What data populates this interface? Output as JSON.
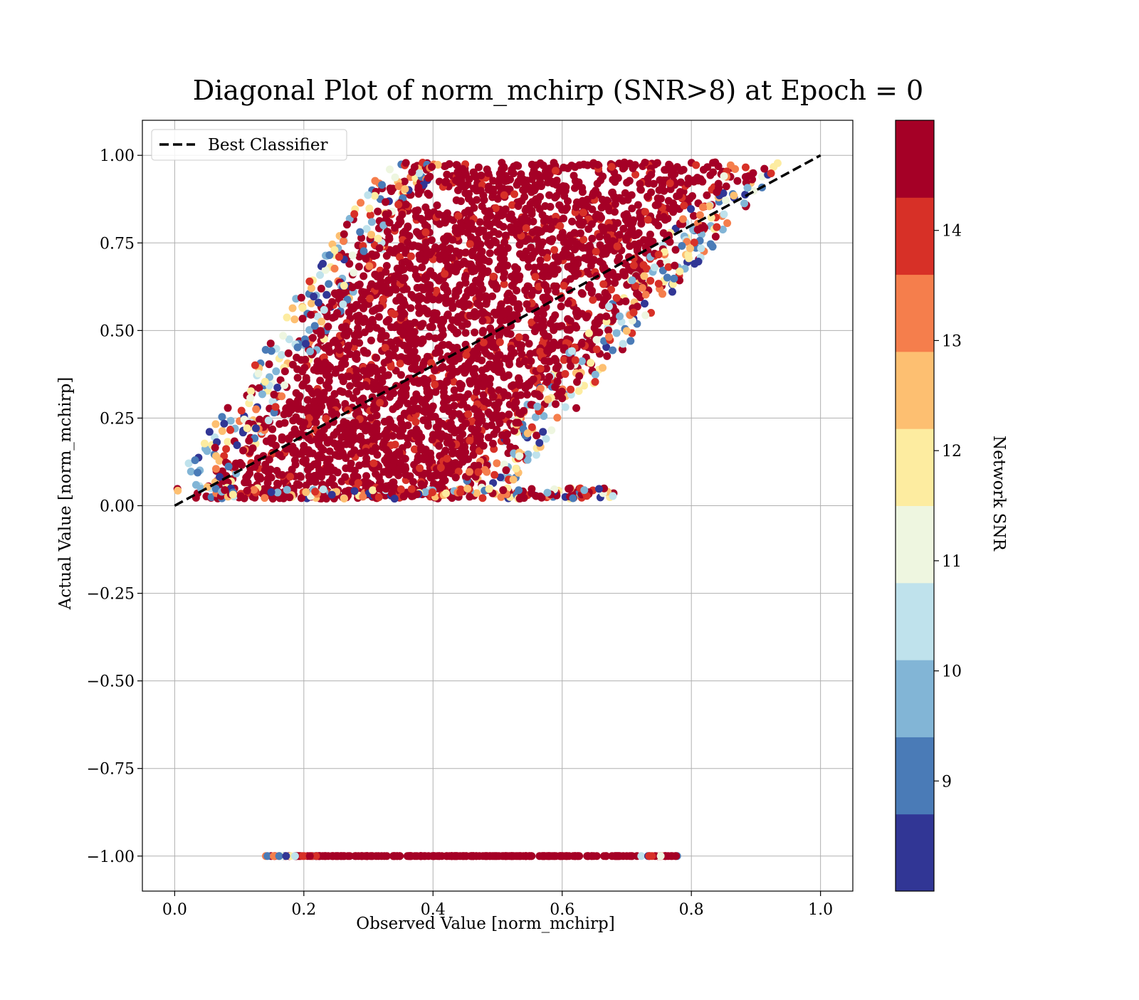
{
  "chart_data": {
    "type": "scatter",
    "title": "Diagonal Plot of norm_mchirp (SNR>8) at Epoch = 0",
    "xlabel": "Observed Value [norm_mchirp]",
    "ylabel": "Actual Value [norm_mchirp]",
    "xlim": [
      -0.05,
      1.05
    ],
    "ylim": [
      -1.1,
      1.1
    ],
    "x_ticks": [
      0.0,
      0.2,
      0.4,
      0.6,
      0.8,
      1.0
    ],
    "x_tick_labels": [
      "0.0",
      "0.2",
      "0.4",
      "0.6",
      "0.8",
      "1.0"
    ],
    "y_ticks": [
      1.0,
      0.75,
      0.5,
      0.25,
      0.0,
      -0.25,
      -0.5,
      -0.75,
      -1.0
    ],
    "y_tick_labels": [
      "1.00",
      "0.75",
      "0.50",
      "0.25",
      "0.00",
      "−0.25",
      "−0.50",
      "−0.75",
      "−1.00"
    ],
    "grid": true,
    "legend": {
      "position": "top-left",
      "entries": [
        {
          "label": "Best Classifier",
          "style": "dashed",
          "color": "#000000"
        }
      ]
    },
    "reference_line": {
      "name": "Best Classifier",
      "x": [
        0.0,
        1.0
      ],
      "y": [
        0.0,
        1.0
      ]
    },
    "point_regions": {
      "main_band": {
        "description_shape": "parallelogram of observed vs actual values",
        "corners": [
          [
            0.06,
            0.02
          ],
          [
            0.43,
            0.02
          ],
          [
            0.87,
            0.98
          ],
          [
            0.4,
            0.98
          ]
        ]
      },
      "invalid_row": {
        "y": -1.0,
        "x_range": [
          0.14,
          0.78
        ]
      }
    },
    "colorbar": {
      "label": "Network SNR",
      "range": [
        8,
        15
      ],
      "ticks": [
        9,
        10,
        11,
        12,
        13,
        14
      ],
      "tick_labels": [
        "9",
        "10",
        "11",
        "12",
        "13",
        "14"
      ],
      "colors": [
        "#313695",
        "#4a7bb7",
        "#82b5d6",
        "#bfe2ec",
        "#eef6e0",
        "#fdeca0",
        "#fdbf71",
        "#f57e4c",
        "#d73027",
        "#a50026"
      ]
    }
  }
}
